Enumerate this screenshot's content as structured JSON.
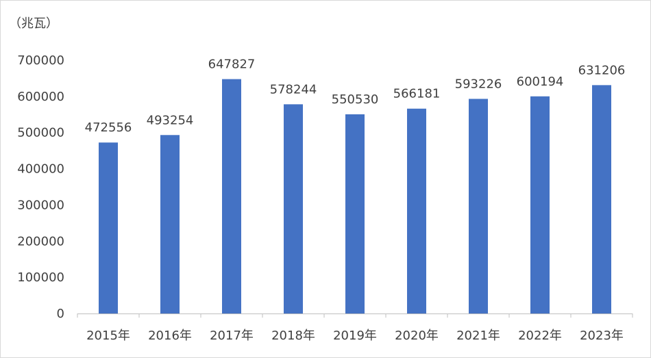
{
  "chart_data": {
    "type": "bar",
    "unit_label": "（兆瓦）",
    "categories": [
      "2015年",
      "2016年",
      "2017年",
      "2018年",
      "2019年",
      "2020年",
      "2021年",
      "2022年",
      "2023年"
    ],
    "values": [
      472556,
      493254,
      647827,
      578244,
      550530,
      566181,
      593226,
      600194,
      631206
    ],
    "value_labels": [
      "472556",
      "493254",
      "647827",
      "578244",
      "550530",
      "566181",
      "593226",
      "600194",
      "631206"
    ],
    "ylim": [
      0,
      700000
    ],
    "yticks": [
      0,
      100000,
      200000,
      300000,
      400000,
      500000,
      600000,
      700000
    ],
    "ytick_labels": [
      "0",
      "100000",
      "200000",
      "300000",
      "400000",
      "500000",
      "600000",
      "700000"
    ],
    "grid": false,
    "legend": "none",
    "bar_color": "#4472c4",
    "axis_color": "#bfbfbf",
    "text_color": "#404040"
  }
}
